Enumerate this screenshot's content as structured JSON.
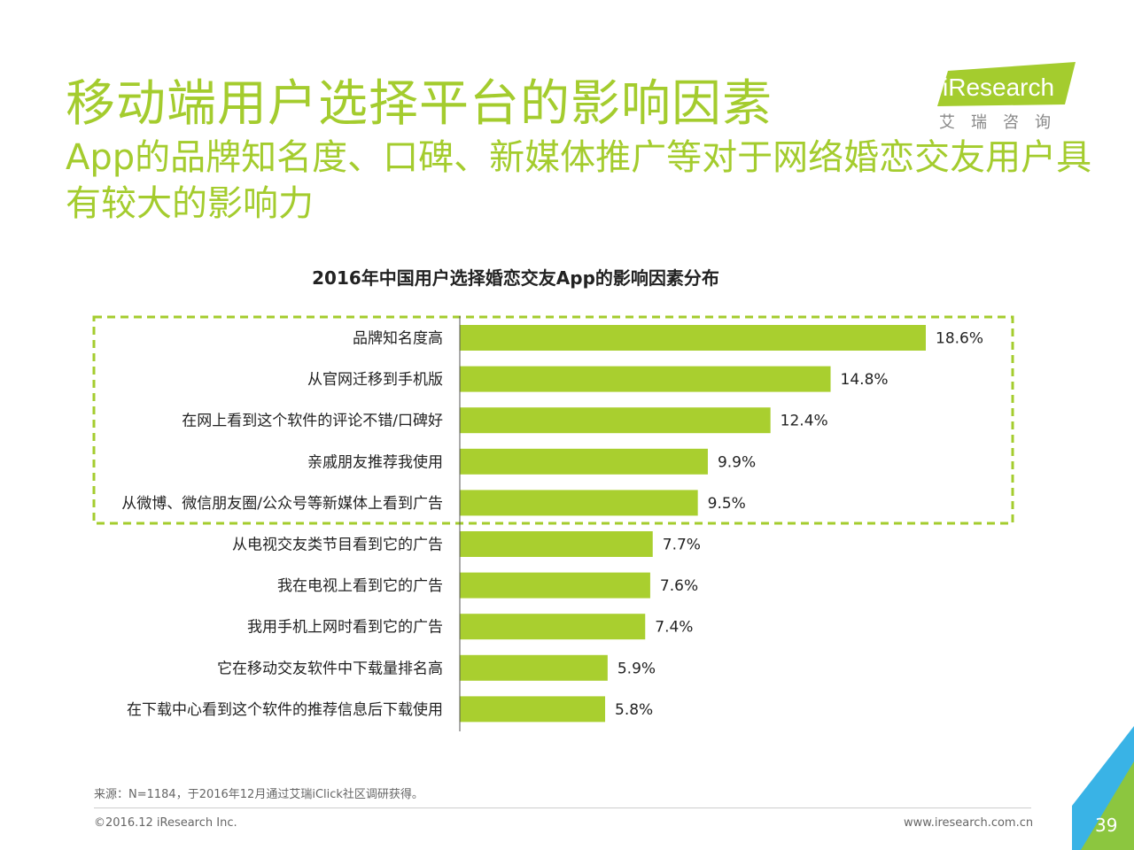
{
  "header": {
    "title": "移动端用户选择平台的影响因素",
    "subtitle": "App的品牌知名度、口碑、新媒体推广等对于网络婚恋交友用户具有较大的影响力"
  },
  "logo": {
    "brand": "iResearch",
    "cn": "艾瑞咨询"
  },
  "chart_data": {
    "type": "bar",
    "orientation": "horizontal",
    "title": "2016年中国用户选择婚恋交友App的影响因素分布",
    "xlabel": "",
    "ylabel": "",
    "unit": "%",
    "xlim": [
      0,
      20
    ],
    "grid": false,
    "highlight_top_n": 5,
    "categories": [
      "品牌知名度高",
      "从官网迁移到手机版",
      "在网上看到这个软件的评论不错/口碑好",
      "亲戚朋友推荐我使用",
      "从微博、微信朋友圈/公众号等新媒体上看到广告",
      "从电视交友类节目看到它的广告",
      "我在电视上看到它的广告",
      "我用手机上网时看到它的广告",
      "它在移动交友软件中下载量排名高",
      "在下载中心看到这个软件的推荐信息后下载使用"
    ],
    "values": [
      18.6,
      14.8,
      12.4,
      9.9,
      9.5,
      7.7,
      7.6,
      7.4,
      5.9,
      5.8
    ],
    "labels": [
      "18.6%",
      "14.8%",
      "12.4%",
      "9.9%",
      "9.5%",
      "7.7%",
      "7.6%",
      "7.4%",
      "5.9%",
      "5.8%"
    ]
  },
  "colors": {
    "accent": "#a4cc2e",
    "bar": "#a9cf2f",
    "corner_blue": "#39b3e6",
    "corner_green": "#8cc63f"
  },
  "footer": {
    "source": "来源：N=1184，于2016年12月通过艾瑞iClick社区调研获得。",
    "copyright": "©2016.12 iResearch Inc.",
    "url": "www.iresearch.com.cn",
    "page": "39"
  }
}
